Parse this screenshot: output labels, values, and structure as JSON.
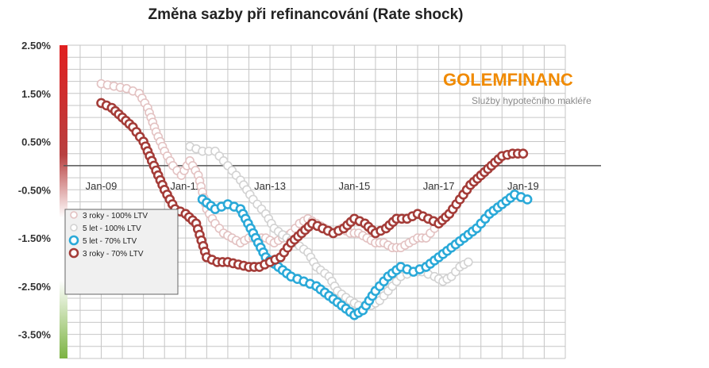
{
  "chart_data": {
    "type": "line",
    "title": "Změna sazby při refinancování (Rate shock)",
    "ylim": [
      -4.0,
      2.5
    ],
    "xlim": [
      2008.2,
      2020.0
    ],
    "yticks": [
      "2.50%",
      "1.50%",
      "0.50%",
      "-0.50%",
      "-1.50%",
      "-2.50%",
      "-3.50%"
    ],
    "ytick_values": [
      2.5,
      1.5,
      0.5,
      -0.5,
      -1.5,
      -2.5,
      -3.5
    ],
    "xticks": [
      "Jan-09",
      "Jan-11",
      "Jan-13",
      "Jan-15",
      "Jan-17",
      "Jan-19"
    ],
    "xtick_values": [
      2009.0,
      2011.0,
      2013.0,
      2015.0,
      2017.0,
      2019.0
    ],
    "grid": true,
    "legend_position": "left",
    "series": [
      {
        "name": "3 roky - 100% LTV",
        "color": "#e3c2c2",
        "x": [
          2009.0,
          2009.3,
          2009.6,
          2009.9,
          2010.1,
          2010.3,
          2010.5,
          2010.7,
          2010.9,
          2011.1,
          2011.3,
          2011.5,
          2011.7,
          2011.9,
          2012.1,
          2012.3,
          2012.5,
          2012.7,
          2012.9,
          2013.1,
          2013.3,
          2013.5,
          2013.7,
          2013.9,
          2014.1,
          2014.3,
          2014.5,
          2014.7,
          2014.9,
          2015.1,
          2015.3,
          2015.5,
          2015.7,
          2015.9,
          2016.1,
          2016.3,
          2016.5,
          2016.7,
          2016.9
        ],
        "y": [
          1.7,
          1.65,
          1.6,
          1.5,
          1.2,
          0.7,
          0.3,
          0.0,
          -0.2,
          0.1,
          -0.2,
          -0.9,
          -1.2,
          -1.4,
          -1.5,
          -1.6,
          -1.5,
          -1.5,
          -1.5,
          -1.6,
          -1.5,
          -1.4,
          -1.2,
          -1.1,
          -1.2,
          -1.3,
          -1.4,
          -1.3,
          -1.4,
          -1.4,
          -1.5,
          -1.6,
          -1.6,
          -1.7,
          -1.7,
          -1.6,
          -1.5,
          -1.5,
          -1.3
        ]
      },
      {
        "name": "5 let - 100% LTV",
        "color": "#d2d2d2",
        "x": [
          2011.1,
          2011.4,
          2011.7,
          2012.0,
          2012.3,
          2012.6,
          2012.9,
          2013.1,
          2013.4,
          2013.6,
          2013.9,
          2014.1,
          2014.4,
          2014.6,
          2014.9,
          2015.1,
          2015.4,
          2015.6,
          2015.9,
          2016.1,
          2016.4,
          2016.6,
          2016.9,
          2017.1,
          2017.3,
          2017.5,
          2017.7
        ],
        "y": [
          0.4,
          0.3,
          0.3,
          0.0,
          -0.3,
          -0.7,
          -1.0,
          -1.3,
          -1.5,
          -1.6,
          -1.8,
          -2.1,
          -2.3,
          -2.6,
          -2.8,
          -2.9,
          -2.9,
          -2.8,
          -2.5,
          -2.3,
          -2.2,
          -2.2,
          -2.3,
          -2.4,
          -2.3,
          -2.1,
          -2.0
        ]
      },
      {
        "name": "5 let - 70% LTV",
        "color": "#2aa9d8",
        "x": [
          2011.4,
          2011.7,
          2012.0,
          2012.3,
          2012.6,
          2012.9,
          2013.2,
          2013.5,
          2013.8,
          2014.1,
          2014.4,
          2014.7,
          2015.0,
          2015.2,
          2015.5,
          2015.8,
          2016.1,
          2016.4,
          2016.7,
          2017.0,
          2017.3,
          2017.6,
          2017.9,
          2018.2,
          2018.5,
          2018.8,
          2019.1
        ],
        "y": [
          -0.7,
          -0.9,
          -0.8,
          -0.9,
          -1.4,
          -1.9,
          -2.1,
          -2.3,
          -2.4,
          -2.5,
          -2.7,
          -2.9,
          -3.1,
          -3.0,
          -2.6,
          -2.3,
          -2.1,
          -2.2,
          -2.1,
          -1.9,
          -1.7,
          -1.5,
          -1.3,
          -1.0,
          -0.8,
          -0.6,
          -0.7
        ]
      },
      {
        "name": "3 roky - 70% LTV",
        "color": "#a43c38",
        "x": [
          2009.0,
          2009.25,
          2009.5,
          2009.75,
          2010.0,
          2010.25,
          2010.5,
          2010.75,
          2011.0,
          2011.25,
          2011.5,
          2011.75,
          2012.0,
          2012.25,
          2012.5,
          2012.75,
          2013.0,
          2013.25,
          2013.5,
          2013.75,
          2014.0,
          2014.25,
          2014.5,
          2014.75,
          2015.0,
          2015.25,
          2015.5,
          2015.75,
          2016.0,
          2016.25,
          2016.5,
          2016.75,
          2017.0,
          2017.25,
          2017.5,
          2017.75,
          2018.0,
          2018.25,
          2018.5,
          2018.75,
          2019.0
        ],
        "y": [
          1.3,
          1.2,
          1.0,
          0.8,
          0.5,
          0.0,
          -0.5,
          -0.9,
          -1.0,
          -1.2,
          -1.9,
          -2.0,
          -2.0,
          -2.05,
          -2.1,
          -2.1,
          -2.0,
          -1.9,
          -1.6,
          -1.4,
          -1.2,
          -1.3,
          -1.4,
          -1.3,
          -1.1,
          -1.2,
          -1.4,
          -1.3,
          -1.1,
          -1.1,
          -1.0,
          -1.1,
          -1.2,
          -1.0,
          -0.7,
          -0.4,
          -0.2,
          0.0,
          0.2,
          0.25,
          0.25
        ]
      }
    ]
  },
  "logo": {
    "brand": "GOLEMFINANC",
    "tagline": "Služby hypotečního makléře",
    "color": "#f08a00"
  },
  "gradient_bar": {
    "top_color": "#e02020",
    "mid_color": "#ffffff",
    "bottom_color": "#7cb342"
  }
}
